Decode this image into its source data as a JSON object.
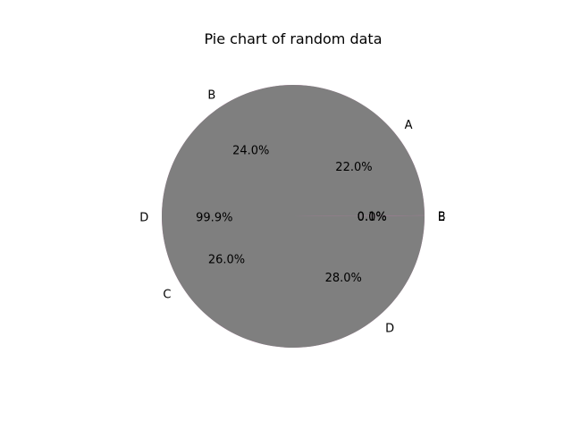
{
  "chart_data": {
    "type": "pie",
    "title": "Pie chart of random data",
    "layers": [
      {
        "name": "",
        "categories": [
          "A",
          "B",
          "C",
          "D"
        ],
        "values": [
          22.0,
          24.0,
          26.0,
          28.0
        ],
        "pct_labels": [
          "22.0%",
          "24.0%",
          "26.0%",
          "28.0%"
        ],
        "color": "#e377c2",
        "alpha": 1.0
      },
      {
        "name": "",
        "categories": [
          "E",
          "B",
          "D"
        ],
        "values": [
          0.02,
          0.1,
          99.9
        ],
        "pct_labels": [
          "0.0%",
          "0.1%",
          "99.9%"
        ],
        "color": "#7f7f7f",
        "alpha": 1.0
      }
    ],
    "start_angle_deg": 0,
    "direction": "counterclockwise",
    "colors": [
      "#e377c2",
      "#7f7f7f",
      "#bcbd22"
    ]
  }
}
